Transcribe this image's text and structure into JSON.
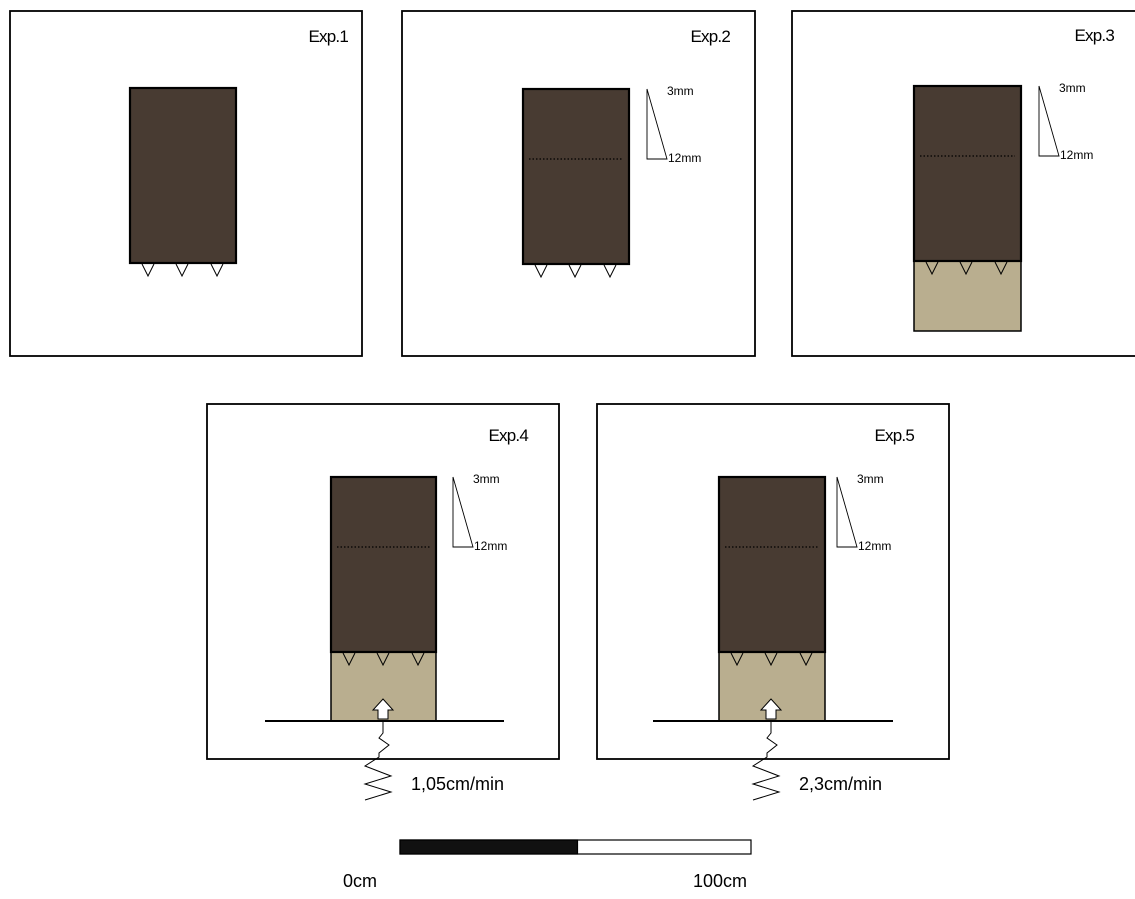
{
  "colors": {
    "block": "#483b32",
    "sediment": "#b9ae8f",
    "frame": "#000000",
    "background": "#ffffff"
  },
  "panels": [
    {
      "label": "Exp.1",
      "top_dim": "",
      "bottom_dim": "",
      "has_sediment": false,
      "has_spring": false,
      "rate": ""
    },
    {
      "label": "Exp.2",
      "top_dim": "3mm",
      "bottom_dim": "12mm",
      "has_sediment": false,
      "has_spring": false,
      "rate": ""
    },
    {
      "label": "Exp.3",
      "top_dim": "3mm",
      "bottom_dim": "12mm",
      "has_sediment": true,
      "has_spring": false,
      "rate": ""
    },
    {
      "label": "Exp.4",
      "top_dim": "3mm",
      "bottom_dim": "12mm",
      "has_sediment": true,
      "has_spring": true,
      "rate": "1,05cm/min"
    },
    {
      "label": "Exp.5",
      "top_dim": "3mm",
      "bottom_dim": "12mm",
      "has_sediment": true,
      "has_spring": true,
      "rate": "2,3cm/min"
    }
  ],
  "scale_bar": {
    "start_label": "0cm",
    "end_label": "100cm",
    "filled_fraction": 0.5
  }
}
